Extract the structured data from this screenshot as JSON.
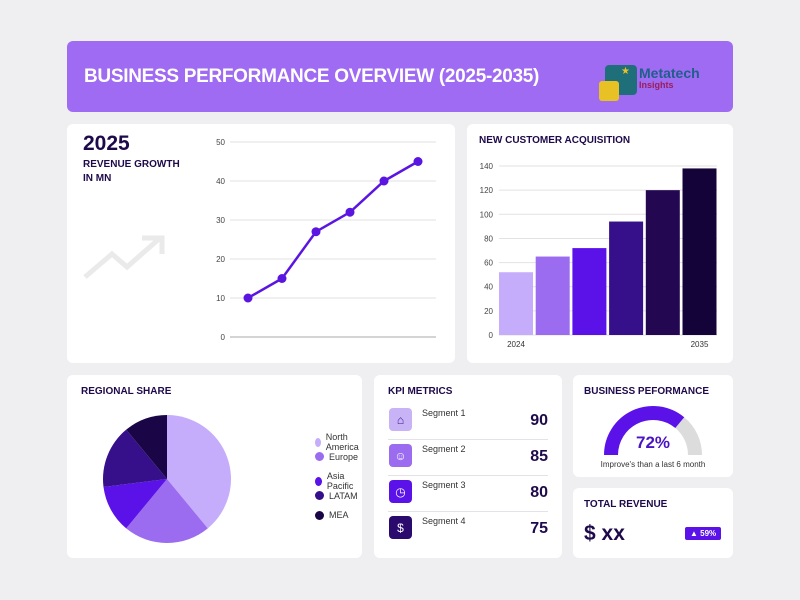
{
  "header": {
    "title": "BUSINESS PERFORMANCE OVERVIEW (2025-2035)",
    "logo_text": "Metatech",
    "logo_sub": "Insights"
  },
  "revenue": {
    "year": "2025",
    "label_line1": "REVENUE GROWTH",
    "label_line2": "IN MN"
  },
  "chart_data": [
    {
      "type": "line",
      "title": "REVENUE GROWTH IN MN",
      "values": [
        10,
        15,
        27,
        32,
        40,
        45
      ],
      "ylim": [
        0,
        50
      ],
      "yticks": [
        0,
        10,
        20,
        30,
        40,
        50
      ],
      "grid": true,
      "color": "#5a16e0"
    },
    {
      "type": "bar",
      "title": "NEW CUSTOMER ACQUISITION",
      "values": [
        52,
        65,
        72,
        94,
        120,
        138
      ],
      "xtick_labels": [
        "2024",
        "",
        "",
        "",
        "",
        "2035"
      ],
      "ylim": [
        0,
        140
      ],
      "yticks": [
        0,
        20,
        40,
        60,
        80,
        100,
        120,
        140
      ],
      "grid": true,
      "colors": [
        "#c5adfb",
        "#9b6cf0",
        "#5b12e8",
        "#36108a",
        "#230750",
        "#140338"
      ]
    },
    {
      "type": "pie",
      "title": "REGIONAL SHARE",
      "categories": [
        "North America",
        "Europe",
        "Asia Pacific",
        "LATAM",
        "MEA"
      ],
      "values": [
        39,
        22,
        12,
        16,
        11
      ],
      "colors": [
        "#c5adfb",
        "#9b6cf0",
        "#5b12e8",
        "#36108a",
        "#1a0646"
      ],
      "legend": "right"
    }
  ],
  "kpi": {
    "title": "KPI METRICS",
    "items": [
      {
        "label": "Segment 1",
        "value": "90",
        "icon": "home-percent-icon",
        "color": "#c8b3f7"
      },
      {
        "label": "Segment 2",
        "value": "85",
        "icon": "user-star-icon",
        "color": "#9b6cf0"
      },
      {
        "label": "Segment 3",
        "value": "80",
        "icon": "clock-plus-icon",
        "color": "#5b12e8"
      },
      {
        "label": "Segment 4",
        "value": "75",
        "icon": "dollar-cycle-icon",
        "color": "#2b0a6e"
      }
    ]
  },
  "performance": {
    "title": "BUSINESS PEFORMANCE",
    "value": "72%",
    "percent": 72,
    "caption": "Improve's than a last 6 month"
  },
  "total": {
    "title": "TOTAL REVENUE",
    "value": "$ xx",
    "badge": "▲ 59%"
  }
}
